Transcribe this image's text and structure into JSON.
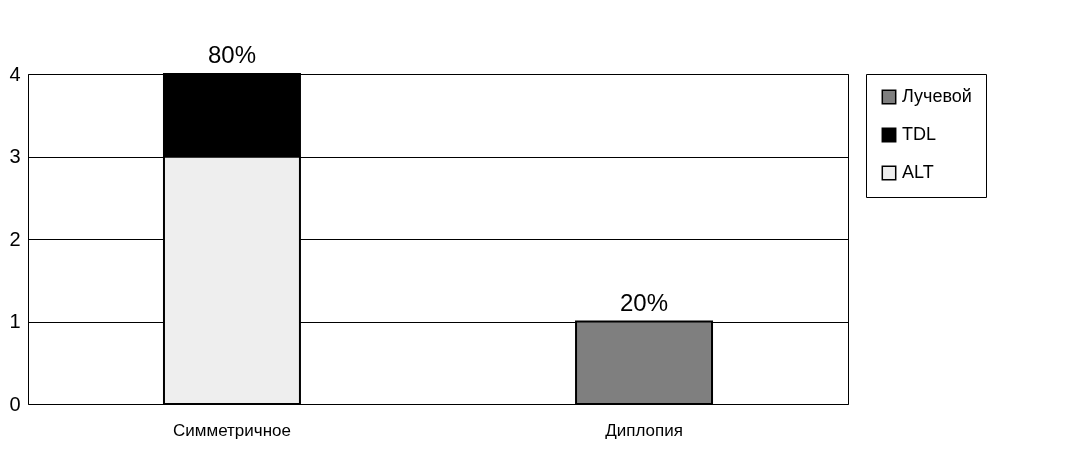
{
  "chart_data": {
    "type": "bar",
    "stacked": true,
    "categories": [
      "Симметричное",
      "Диплопия"
    ],
    "series": [
      {
        "name": "ALT",
        "color": "#eeeeee",
        "values": [
          3,
          null
        ]
      },
      {
        "name": "TDL",
        "color": "#000000",
        "values": [
          1,
          null
        ]
      },
      {
        "name": "Лучевой",
        "color": "#7f7f7f",
        "values": [
          null,
          1
        ]
      }
    ],
    "annotations": [
      {
        "text": "80%",
        "x": "Симметричное",
        "y": 4
      },
      {
        "text": "20%",
        "x": "Диплопия",
        "y": 1
      }
    ],
    "ylim": [
      0,
      4
    ],
    "yticks": [
      0,
      1,
      2,
      3,
      4
    ],
    "grid": "y",
    "legend": "right"
  }
}
